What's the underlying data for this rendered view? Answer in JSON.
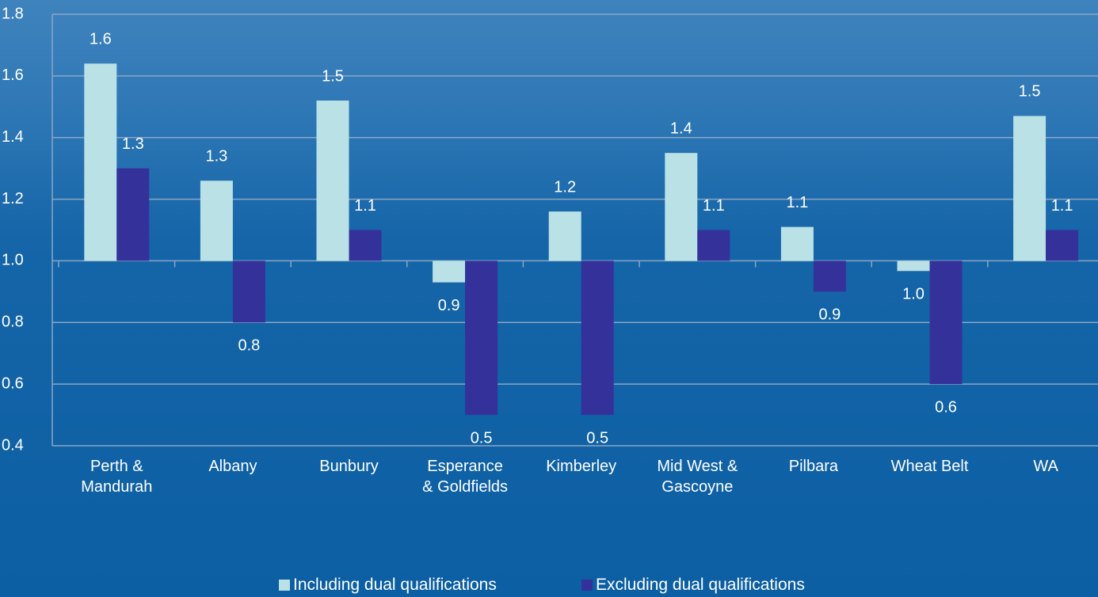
{
  "chart_data": {
    "type": "bar",
    "categories": [
      "Perth &\nMandurah",
      "Albany",
      "Bunbury",
      "Esperance\n& Goldfields",
      "Kimberley",
      "Mid West &\nGascoyne",
      "Pilbara",
      "Wheat Belt",
      "WA"
    ],
    "series": [
      {
        "name": "Including dual qualifications",
        "color": "#b9e1e6",
        "values": [
          1.64,
          1.26,
          1.52,
          0.93,
          1.16,
          1.35,
          1.11,
          0.967,
          1.47
        ],
        "value_labels": [
          "1.6",
          "1.3",
          "1.5",
          "0.9",
          "1.2",
          "1.4",
          "1.1",
          "1.0",
          "1.5"
        ]
      },
      {
        "name": "Excluding dual qualifications",
        "color": "#35319b",
        "values": [
          1.3,
          0.8,
          1.1,
          0.5,
          0.5,
          1.1,
          0.9,
          0.6,
          1.1
        ]
      }
    ],
    "ylim": [
      0.4,
      1.8
    ],
    "yticks": [
      0.4,
      0.6,
      0.8,
      {
        "value": 1,
        "label": "1.0"
      },
      1.2,
      1.4,
      1.6,
      1.8
    ],
    "x_axis_crosses": 1,
    "grid": true,
    "legend": "bottom"
  }
}
